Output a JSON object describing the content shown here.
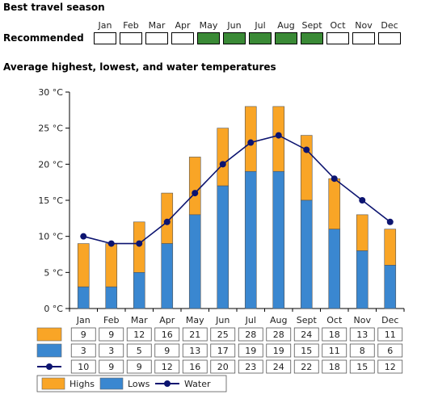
{
  "season": {
    "title": "Best travel season",
    "row_label": "Recommended",
    "months": [
      "Jan",
      "Feb",
      "Mar",
      "Apr",
      "May",
      "Jun",
      "Jul",
      "Aug",
      "Sept",
      "Oct",
      "Nov",
      "Dec"
    ],
    "recommended": [
      false,
      false,
      false,
      false,
      true,
      true,
      true,
      true,
      true,
      false,
      false,
      false
    ],
    "recommended_color": "#3a8a36"
  },
  "temps_title": "Average highest, lowest, and water temperatures",
  "chart_data": {
    "type": "bar",
    "title": "Average highest, lowest, and water temperatures",
    "categories": [
      "Jan",
      "Feb",
      "Mar",
      "Apr",
      "May",
      "Jun",
      "Jul",
      "Aug",
      "Sept",
      "Oct",
      "Nov",
      "Dec"
    ],
    "series": [
      {
        "name": "Highs",
        "type": "bar",
        "color": "#f9a526",
        "values": [
          9,
          9,
          12,
          16,
          21,
          25,
          28,
          28,
          24,
          18,
          13,
          11
        ]
      },
      {
        "name": "Lows",
        "type": "bar",
        "color": "#3a87d0",
        "values": [
          3,
          3,
          5,
          9,
          13,
          17,
          19,
          19,
          15,
          11,
          8,
          6
        ]
      },
      {
        "name": "Water",
        "type": "line",
        "color": "#0c1470",
        "values": [
          10,
          9,
          9,
          12,
          16,
          20,
          23,
          24,
          22,
          18,
          15,
          12
        ]
      }
    ],
    "ylim": [
      0,
      30
    ],
    "yticks": [
      0,
      5,
      10,
      15,
      20,
      25,
      30
    ],
    "ytick_labels": [
      "0 °C",
      "5 °C",
      "10 °C",
      "15 °C",
      "20 °C",
      "25 °C",
      "30 °C"
    ],
    "legend": [
      "Highs",
      "Lows",
      "Water"
    ],
    "legend_position": "bottom-left"
  }
}
